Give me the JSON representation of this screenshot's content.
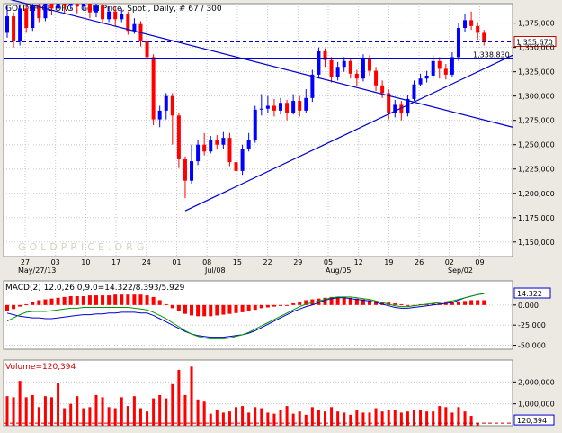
{
  "header": {
    "title": "GOLDPRICE.ORG , Gold Price, Spot , Daily, # 67 / 300"
  },
  "watermark": "GOLDPRICE.ORG",
  "colors": {
    "background": "#ffffff",
    "up": "#0000ff",
    "down": "#ff0000",
    "trendline": "#0000cc",
    "macd_line": "#0000cc",
    "signal_line": "#009900"
  },
  "chart_data": [
    {
      "type": "candlestick",
      "ylim": [
        1135,
        1395
      ],
      "yticks": [
        1150,
        1175,
        1200,
        1225,
        1250,
        1275,
        1300,
        1325,
        1350,
        1375
      ],
      "ytick_labels": [
        "1,150,000",
        "1,175,000",
        "1,200,000",
        "1,225,000",
        "1,250,000",
        "1,275,000",
        "1,300,000",
        "1,325,000",
        "1,350,000",
        "1,375,000"
      ],
      "xticks": [
        "27",
        "03",
        "10",
        "17",
        "24",
        "01",
        "08",
        "15",
        "22",
        "29",
        "05",
        "12",
        "19",
        "26",
        "02",
        "09"
      ],
      "month_labels": [
        "May/27/13",
        "Jul/08",
        "Aug/05",
        "Sep/02"
      ],
      "current_price_label": "1,355,670",
      "current_price": 1355.67,
      "level_label": "1,338,830",
      "level": 1338.83,
      "grid": true,
      "candles": [
        {
          "o": 1365,
          "c": 1382,
          "h": 1392,
          "l": 1360
        },
        {
          "o": 1382,
          "c": 1356,
          "h": 1386,
          "l": 1350
        },
        {
          "o": 1356,
          "c": 1390,
          "h": 1394,
          "l": 1352
        },
        {
          "o": 1390,
          "c": 1370,
          "h": 1395,
          "l": 1365
        },
        {
          "o": 1370,
          "c": 1393,
          "h": 1396,
          "l": 1367
        },
        {
          "o": 1393,
          "c": 1380,
          "h": 1397,
          "l": 1376
        },
        {
          "o": 1380,
          "c": 1398,
          "h": 1402,
          "l": 1377
        },
        {
          "o": 1398,
          "c": 1390,
          "h": 1405,
          "l": 1383
        },
        {
          "o": 1390,
          "c": 1400,
          "h": 1404,
          "l": 1386
        },
        {
          "o": 1400,
          "c": 1393,
          "h": 1403,
          "l": 1385
        },
        {
          "o": 1393,
          "c": 1403,
          "h": 1410,
          "l": 1389
        },
        {
          "o": 1403,
          "c": 1392,
          "h": 1406,
          "l": 1385
        },
        {
          "o": 1392,
          "c": 1397,
          "h": 1402,
          "l": 1388
        },
        {
          "o": 1397,
          "c": 1386,
          "h": 1400,
          "l": 1380
        },
        {
          "o": 1386,
          "c": 1393,
          "h": 1398,
          "l": 1381
        },
        {
          "o": 1393,
          "c": 1379,
          "h": 1396,
          "l": 1374
        },
        {
          "o": 1379,
          "c": 1387,
          "h": 1392,
          "l": 1376
        },
        {
          "o": 1387,
          "c": 1379,
          "h": 1392,
          "l": 1372
        },
        {
          "o": 1379,
          "c": 1384,
          "h": 1390,
          "l": 1376
        },
        {
          "o": 1384,
          "c": 1367,
          "h": 1387,
          "l": 1363
        },
        {
          "o": 1367,
          "c": 1374,
          "h": 1380,
          "l": 1364
        },
        {
          "o": 1374,
          "c": 1357,
          "h": 1377,
          "l": 1351
        },
        {
          "o": 1357,
          "c": 1340,
          "h": 1360,
          "l": 1333
        },
        {
          "o": 1340,
          "c": 1276,
          "h": 1343,
          "l": 1270
        },
        {
          "o": 1276,
          "c": 1285,
          "h": 1290,
          "l": 1268
        },
        {
          "o": 1285,
          "c": 1300,
          "h": 1303,
          "l": 1276
        },
        {
          "o": 1300,
          "c": 1280,
          "h": 1303,
          "l": 1250
        },
        {
          "o": 1280,
          "c": 1235,
          "h": 1283,
          "l": 1226
        },
        {
          "o": 1235,
          "c": 1213,
          "h": 1238,
          "l": 1195
        },
        {
          "o": 1213,
          "c": 1233,
          "h": 1250,
          "l": 1210
        },
        {
          "o": 1233,
          "c": 1250,
          "h": 1255,
          "l": 1229
        },
        {
          "o": 1250,
          "c": 1243,
          "h": 1262,
          "l": 1239
        },
        {
          "o": 1243,
          "c": 1255,
          "h": 1259,
          "l": 1241
        },
        {
          "o": 1255,
          "c": 1250,
          "h": 1260,
          "l": 1245
        },
        {
          "o": 1250,
          "c": 1257,
          "h": 1263,
          "l": 1246
        },
        {
          "o": 1257,
          "c": 1232,
          "h": 1262,
          "l": 1228
        },
        {
          "o": 1232,
          "c": 1223,
          "h": 1237,
          "l": 1212
        },
        {
          "o": 1223,
          "c": 1246,
          "h": 1250,
          "l": 1219
        },
        {
          "o": 1246,
          "c": 1255,
          "h": 1262,
          "l": 1243
        },
        {
          "o": 1255,
          "c": 1286,
          "h": 1290,
          "l": 1252
        },
        {
          "o": 1286,
          "c": 1287,
          "h": 1302,
          "l": 1280
        },
        {
          "o": 1287,
          "c": 1290,
          "h": 1300,
          "l": 1283
        },
        {
          "o": 1290,
          "c": 1285,
          "h": 1297,
          "l": 1279
        },
        {
          "o": 1285,
          "c": 1293,
          "h": 1298,
          "l": 1281
        },
        {
          "o": 1293,
          "c": 1283,
          "h": 1296,
          "l": 1275
        },
        {
          "o": 1283,
          "c": 1295,
          "h": 1302,
          "l": 1281
        },
        {
          "o": 1295,
          "c": 1285,
          "h": 1300,
          "l": 1279
        },
        {
          "o": 1285,
          "c": 1298,
          "h": 1307,
          "l": 1283
        },
        {
          "o": 1298,
          "c": 1322,
          "h": 1327,
          "l": 1294
        },
        {
          "o": 1322,
          "c": 1346,
          "h": 1350,
          "l": 1318
        },
        {
          "o": 1346,
          "c": 1337,
          "h": 1349,
          "l": 1330
        },
        {
          "o": 1337,
          "c": 1320,
          "h": 1340,
          "l": 1314
        },
        {
          "o": 1320,
          "c": 1330,
          "h": 1335,
          "l": 1316
        },
        {
          "o": 1330,
          "c": 1336,
          "h": 1340,
          "l": 1325
        },
        {
          "o": 1336,
          "c": 1323,
          "h": 1339,
          "l": 1318
        },
        {
          "o": 1323,
          "c": 1318,
          "h": 1327,
          "l": 1310
        },
        {
          "o": 1318,
          "c": 1339,
          "h": 1343,
          "l": 1315
        },
        {
          "o": 1339,
          "c": 1326,
          "h": 1342,
          "l": 1321
        },
        {
          "o": 1326,
          "c": 1311,
          "h": 1330,
          "l": 1305
        },
        {
          "o": 1311,
          "c": 1303,
          "h": 1316,
          "l": 1298
        },
        {
          "o": 1303,
          "c": 1283,
          "h": 1307,
          "l": 1276
        },
        {
          "o": 1283,
          "c": 1291,
          "h": 1296,
          "l": 1278
        },
        {
          "o": 1291,
          "c": 1282,
          "h": 1295,
          "l": 1275
        },
        {
          "o": 1282,
          "c": 1297,
          "h": 1301,
          "l": 1279
        },
        {
          "o": 1297,
          "c": 1312,
          "h": 1316,
          "l": 1295
        },
        {
          "o": 1312,
          "c": 1318,
          "h": 1323,
          "l": 1310
        },
        {
          "o": 1318,
          "c": 1321,
          "h": 1326,
          "l": 1314
        },
        {
          "o": 1321,
          "c": 1336,
          "h": 1342,
          "l": 1318
        },
        {
          "o": 1336,
          "c": 1328,
          "h": 1340,
          "l": 1318
        },
        {
          "o": 1328,
          "c": 1322,
          "h": 1333,
          "l": 1317
        },
        {
          "o": 1322,
          "c": 1340,
          "h": 1345,
          "l": 1320
        },
        {
          "o": 1340,
          "c": 1370,
          "h": 1375,
          "l": 1336
        },
        {
          "o": 1370,
          "c": 1378,
          "h": 1384,
          "l": 1366
        },
        {
          "o": 1378,
          "c": 1372,
          "h": 1387,
          "l": 1368
        },
        {
          "o": 1372,
          "c": 1365,
          "h": 1376,
          "l": 1358
        },
        {
          "o": 1365,
          "c": 1355.67,
          "h": 1368,
          "l": 1352
        }
      ],
      "trendlines": [
        {
          "x": [
            0,
            92
          ],
          "y": [
            1400,
            1268
          ]
        },
        {
          "x": [
            28,
            89
          ],
          "y": [
            1182,
            1342
          ]
        }
      ]
    },
    {
      "type": "line",
      "title": "MACD(2) 12.0,26.0,9.0=14.322/8.393/5.929",
      "ylim": [
        -55,
        30
      ],
      "yticks": [
        0,
        -25,
        -50
      ],
      "ytick_labels": [
        "0.000",
        "-25.000",
        "-50.000"
      ],
      "current_label": "14.322",
      "series": [
        {
          "role": "macd",
          "values": [
            -10,
            -12,
            -14,
            -15,
            -16,
            -16,
            -17,
            -17,
            -16,
            -15,
            -14,
            -13,
            -12,
            -12,
            -11,
            -11,
            -10,
            -10,
            -9,
            -9,
            -9,
            -10,
            -10,
            -13,
            -17,
            -21,
            -25,
            -29,
            -33,
            -36,
            -38,
            -39,
            -40,
            -40,
            -40,
            -39,
            -38,
            -37,
            -35,
            -32,
            -28,
            -24,
            -20,
            -16,
            -12,
            -8,
            -5,
            -2,
            0,
            3,
            6,
            8,
            9,
            9,
            8,
            7,
            6,
            5,
            3,
            1,
            -1,
            -3,
            -4,
            -4,
            -3,
            -2,
            -1,
            0,
            1,
            2,
            3,
            6,
            9,
            11,
            13,
            14.32
          ]
        },
        {
          "role": "signal",
          "values": [
            -20,
            -16,
            -12,
            -9,
            -8,
            -8,
            -8,
            -7,
            -6,
            -5,
            -4,
            -4,
            -3,
            -3,
            -3,
            -3,
            -3,
            -3,
            -3,
            -3,
            -4,
            -5,
            -6,
            -9,
            -13,
            -17,
            -22,
            -27,
            -32,
            -36,
            -39,
            -41,
            -42,
            -42,
            -42,
            -41,
            -39,
            -37,
            -34,
            -30,
            -26,
            -22,
            -18,
            -14,
            -10,
            -6,
            -2,
            1,
            3,
            5,
            7,
            9,
            10,
            10,
            10,
            9,
            8,
            7,
            5,
            3,
            1,
            -1,
            -2,
            -2,
            -1,
            0,
            1,
            2,
            3,
            4,
            5,
            7,
            9,
            11,
            13,
            14
          ]
        }
      ],
      "histogram": [
        -8,
        -5,
        -2,
        1,
        4,
        6,
        7,
        8,
        9,
        10,
        11,
        11,
        11,
        12,
        12,
        12,
        12,
        13,
        13,
        13,
        13,
        13,
        12,
        10,
        6,
        1,
        -4,
        -8,
        -11,
        -13,
        -14,
        -14,
        -14,
        -13,
        -12,
        -11,
        -10,
        -9,
        -8,
        -6,
        -4,
        -3,
        -2,
        -1,
        0,
        2,
        4,
        6,
        7,
        8,
        9,
        10,
        10,
        10,
        9,
        8,
        7,
        6,
        5,
        4,
        3,
        2,
        1,
        0,
        0,
        1,
        1,
        2,
        2,
        3,
        3,
        4,
        5,
        6,
        6,
        5.93
      ]
    },
    {
      "type": "bar",
      "title": "Volume=120,394",
      "ylim": [
        0,
        3000000
      ],
      "yticks": [
        1000000,
        2000000
      ],
      "ytick_labels": [
        "1,000,000",
        "2,000,000"
      ],
      "current_label": "120,394",
      "values": [
        1350000,
        1300000,
        2050000,
        1300000,
        1400000,
        850000,
        1350000,
        1300000,
        1950000,
        800000,
        1000000,
        1350000,
        800000,
        850000,
        1400000,
        1300000,
        850000,
        800000,
        1300000,
        900000,
        1350000,
        800000,
        650000,
        1250000,
        1400000,
        1250000,
        1900000,
        2550000,
        1400000,
        2700000,
        1200000,
        1100000,
        550000,
        700000,
        600000,
        650000,
        850000,
        900000,
        600000,
        850000,
        800000,
        600000,
        550000,
        700000,
        900000,
        550000,
        650000,
        500000,
        850000,
        700000,
        650000,
        850000,
        650000,
        600000,
        500000,
        700000,
        600000,
        600000,
        800000,
        650000,
        700000,
        700000,
        600000,
        650000,
        700000,
        700000,
        650000,
        650000,
        900000,
        850000,
        600000,
        850000,
        650000,
        450000,
        120394
      ]
    }
  ]
}
